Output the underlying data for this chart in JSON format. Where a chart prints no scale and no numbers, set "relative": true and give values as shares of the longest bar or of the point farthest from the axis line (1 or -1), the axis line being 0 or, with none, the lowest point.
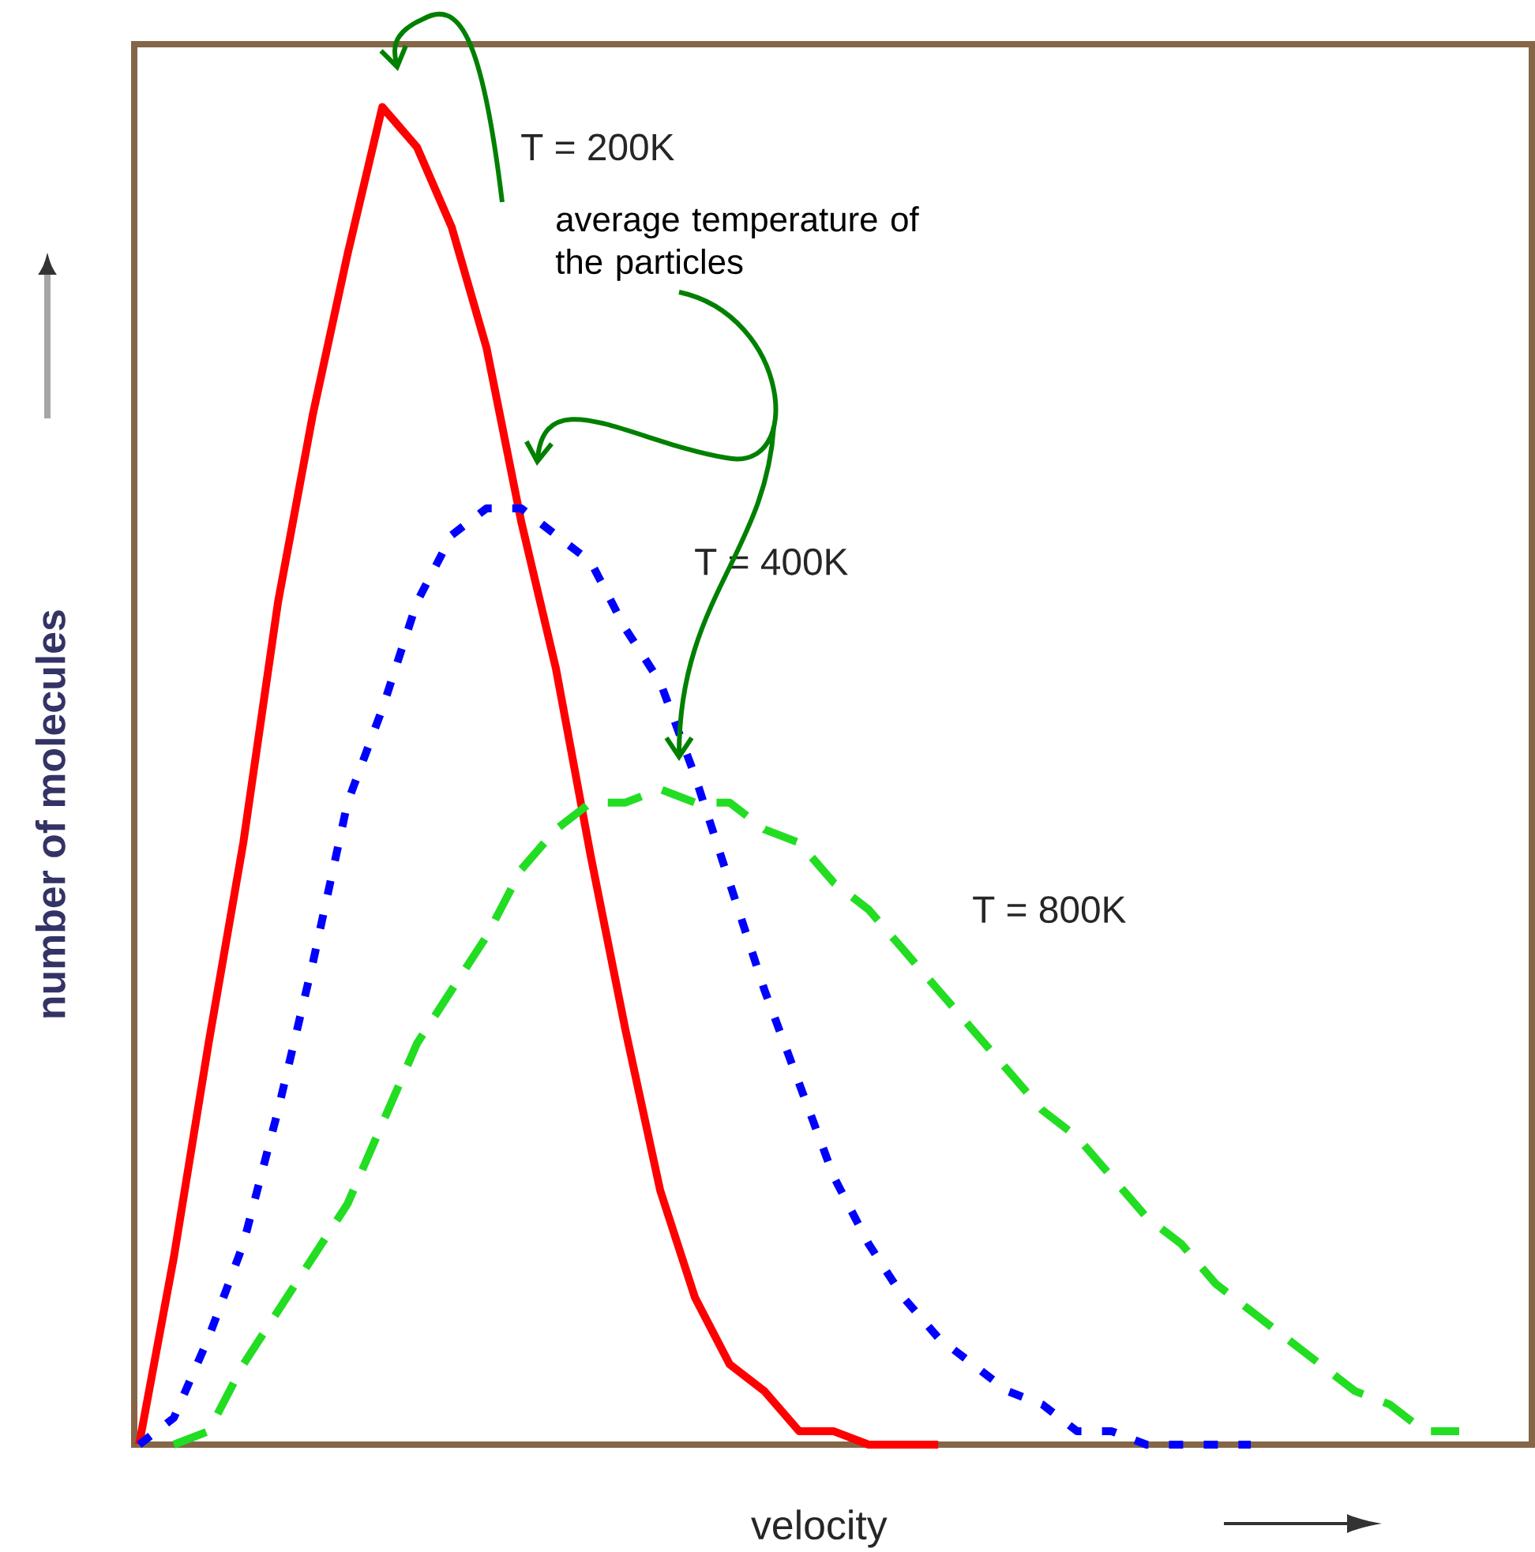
{
  "chart_data": {
    "type": "line",
    "relative": true,
    "tick_labels": false,
    "xlabel": "velocity",
    "ylabel": "number of molecules",
    "annotations": [
      "average temperature of the particles"
    ],
    "categories": [
      null,
      null,
      null,
      null,
      null,
      null,
      null,
      null,
      null,
      null,
      null,
      null,
      null,
      null,
      null,
      null,
      null,
      null,
      null,
      null,
      null,
      null,
      null,
      null,
      null,
      null,
      null,
      null,
      null,
      null,
      null,
      null,
      null,
      null,
      null,
      null,
      null,
      null,
      null,
      null,
      null
    ],
    "series": [
      {
        "name": "T = 200K",
        "color": "#ff0000",
        "line_style": "solid",
        "values": [
          0,
          0.14,
          0.3,
          0.45,
          0.63,
          0.77,
          0.89,
          1,
          0.97,
          0.91,
          0.82,
          0.69,
          0.58,
          0.44,
          0.31,
          0.19,
          0.11,
          0.06,
          0.04,
          0.01,
          0.01,
          0,
          0,
          0,
          null,
          null,
          null,
          null,
          null,
          null,
          null,
          null,
          null,
          null,
          null,
          null,
          null,
          null,
          null,
          null,
          null
        ]
      },
      {
        "name": "T = 400K",
        "color": "#0000ff",
        "line_style": "dotted",
        "values": [
          0,
          0.02,
          0.08,
          0.15,
          0.25,
          0.36,
          0.48,
          0.55,
          0.63,
          0.68,
          0.7,
          0.7,
          0.68,
          0.66,
          0.61,
          0.57,
          0.5,
          0.42,
          0.34,
          0.27,
          0.2,
          0.15,
          0.11,
          0.08,
          0.06,
          0.04,
          0.03,
          0.01,
          0.01,
          0,
          0,
          0,
          0,
          null,
          null,
          null,
          null,
          null,
          null,
          null,
          null
        ]
      },
      {
        "name": "T = 800K",
        "color": "#22dd22",
        "line_style": "dashed",
        "values": [
          null,
          0,
          0.01,
          0.06,
          0.1,
          0.14,
          0.18,
          0.24,
          0.3,
          0.34,
          0.38,
          0.43,
          0.46,
          0.48,
          0.48,
          0.49,
          0.48,
          0.48,
          0.46,
          0.45,
          0.42,
          0.4,
          0.37,
          0.34,
          0.31,
          0.28,
          0.25,
          0.23,
          0.2,
          0.17,
          0.15,
          0.12,
          0.1,
          0.08,
          0.06,
          0.04,
          0.03,
          0.01,
          0.01,
          null,
          null
        ]
      }
    ]
  }
}
